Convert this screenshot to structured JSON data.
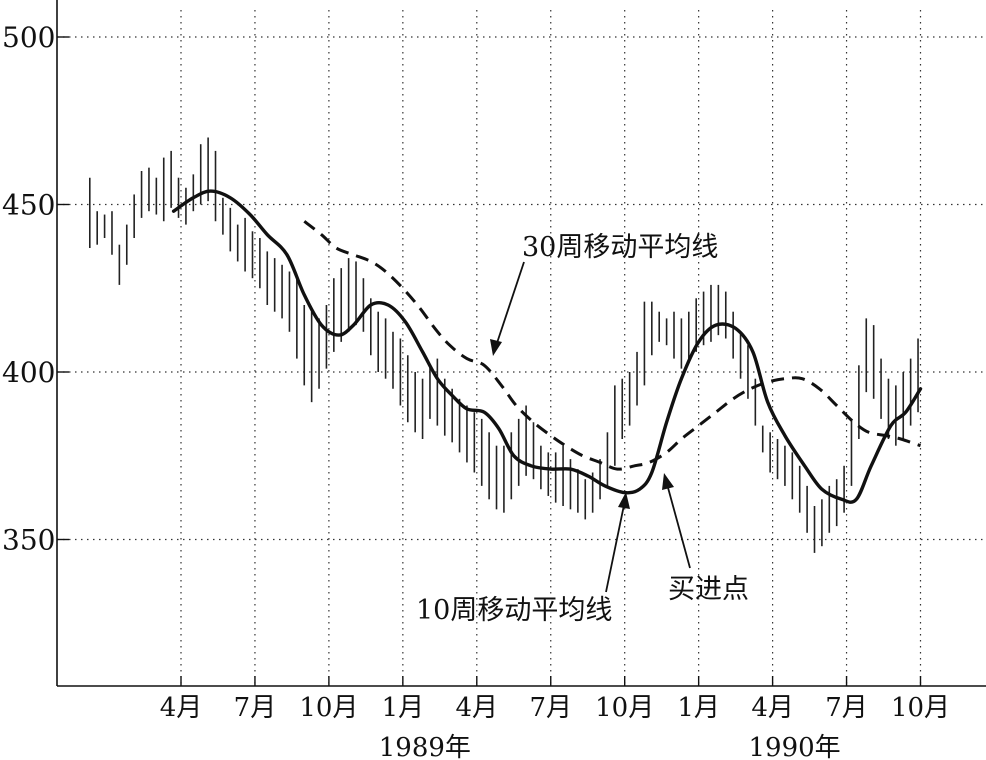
{
  "chart_data": {
    "type": "line",
    "ylim": [
      305,
      510
    ],
    "yticks": [
      350,
      400,
      450,
      500
    ],
    "xticks": [
      {
        "label": "4月",
        "t": 3
      },
      {
        "label": "7月",
        "t": 6
      },
      {
        "label": "10月",
        "t": 9
      },
      {
        "label": "1月",
        "t": 12
      },
      {
        "label": "4月",
        "t": 15
      },
      {
        "label": "7月",
        "t": 18
      },
      {
        "label": "10月",
        "t": 21
      },
      {
        "label": "1月",
        "t": 24
      },
      {
        "label": "4月",
        "t": 27
      },
      {
        "label": "7月",
        "t": 30
      },
      {
        "label": "10月",
        "t": 33
      }
    ],
    "year_labels": [
      {
        "label": "1989年",
        "t": 12
      },
      {
        "label": "1990年",
        "t": 27
      }
    ],
    "xlim": [
      -1,
      33.6
    ],
    "series": [
      {
        "name": "10周移动平均线",
        "style": "solid",
        "points": [
          [
            2.7,
            448
          ],
          [
            3.5,
            452
          ],
          [
            4.2,
            454
          ],
          [
            5.0,
            452
          ],
          [
            5.8,
            447
          ],
          [
            6.5,
            441
          ],
          [
            7.3,
            435
          ],
          [
            8.0,
            423
          ],
          [
            8.7,
            414
          ],
          [
            9.4,
            411
          ],
          [
            10.0,
            414
          ],
          [
            10.7,
            420
          ],
          [
            11.4,
            420
          ],
          [
            12.1,
            415
          ],
          [
            12.8,
            406
          ],
          [
            13.4,
            398
          ],
          [
            14.0,
            393
          ],
          [
            14.6,
            389
          ],
          [
            15.3,
            388
          ],
          [
            15.9,
            383
          ],
          [
            16.5,
            375
          ],
          [
            17.2,
            372
          ],
          [
            18.0,
            371
          ],
          [
            18.8,
            371
          ],
          [
            19.5,
            369
          ],
          [
            20.2,
            366
          ],
          [
            21.0,
            364
          ],
          [
            21.6,
            365
          ],
          [
            22.1,
            370
          ],
          [
            22.7,
            385
          ],
          [
            23.3,
            398
          ],
          [
            24.0,
            409
          ],
          [
            24.7,
            414
          ],
          [
            25.5,
            413
          ],
          [
            26.2,
            406
          ],
          [
            26.8,
            391
          ],
          [
            27.5,
            381
          ],
          [
            28.3,
            372
          ],
          [
            29.0,
            365
          ],
          [
            29.8,
            362
          ],
          [
            30.4,
            362
          ],
          [
            31.0,
            372
          ],
          [
            31.8,
            384
          ],
          [
            32.4,
            388
          ],
          [
            33.0,
            395
          ]
        ]
      },
      {
        "name": "30周移动平均线",
        "style": "dashed",
        "points": [
          [
            8.0,
            445
          ],
          [
            8.7,
            441
          ],
          [
            9.3,
            437
          ],
          [
            10.0,
            435
          ],
          [
            10.7,
            433
          ],
          [
            11.3,
            430
          ],
          [
            12.0,
            425
          ],
          [
            12.7,
            419
          ],
          [
            13.3,
            413
          ],
          [
            13.9,
            408
          ],
          [
            14.6,
            404
          ],
          [
            15.3,
            402
          ],
          [
            16.0,
            396
          ],
          [
            16.6,
            390
          ],
          [
            17.3,
            385
          ],
          [
            18.0,
            381
          ],
          [
            18.6,
            378
          ],
          [
            19.3,
            375
          ],
          [
            20.0,
            373
          ],
          [
            20.7,
            371
          ],
          [
            21.4,
            372
          ],
          [
            22.0,
            373
          ],
          [
            22.7,
            376
          ],
          [
            23.3,
            380
          ],
          [
            24.0,
            384
          ],
          [
            24.7,
            388
          ],
          [
            25.4,
            392
          ],
          [
            26.1,
            395
          ],
          [
            26.8,
            397
          ],
          [
            27.5,
            398
          ],
          [
            28.2,
            398
          ],
          [
            28.9,
            395
          ],
          [
            29.6,
            390
          ],
          [
            30.3,
            385
          ],
          [
            30.9,
            382
          ],
          [
            31.6,
            381
          ],
          [
            32.2,
            380
          ],
          [
            33.0,
            378
          ]
        ]
      }
    ],
    "bars": [
      [
        -0.7,
        437,
        458
      ],
      [
        -0.4,
        438,
        448
      ],
      [
        -0.1,
        440,
        447
      ],
      [
        0.2,
        435,
        448
      ],
      [
        0.5,
        426,
        438
      ],
      [
        0.8,
        432,
        444
      ],
      [
        1.1,
        440,
        453
      ],
      [
        1.4,
        446,
        460
      ],
      [
        1.7,
        448,
        461
      ],
      [
        2.0,
        447,
        458
      ],
      [
        2.3,
        445,
        464
      ],
      [
        2.6,
        449,
        466
      ],
      [
        2.9,
        446,
        458
      ],
      [
        3.2,
        444,
        455
      ],
      [
        3.5,
        448,
        459
      ],
      [
        3.8,
        450,
        468
      ],
      [
        4.1,
        451,
        470
      ],
      [
        4.4,
        445,
        466
      ],
      [
        4.7,
        441,
        452
      ],
      [
        5.0,
        436,
        449
      ],
      [
        5.3,
        433,
        444
      ],
      [
        5.6,
        430,
        446
      ],
      [
        5.9,
        428,
        442
      ],
      [
        6.2,
        425,
        440
      ],
      [
        6.5,
        420,
        436
      ],
      [
        6.8,
        418,
        434
      ],
      [
        7.1,
        416,
        432
      ],
      [
        7.4,
        412,
        430
      ],
      [
        7.7,
        404,
        428
      ],
      [
        8.0,
        396,
        420
      ],
      [
        8.3,
        391,
        418
      ],
      [
        8.6,
        395,
        416
      ],
      [
        8.9,
        401,
        420
      ],
      [
        9.2,
        406,
        428
      ],
      [
        9.5,
        409,
        431
      ],
      [
        9.8,
        412,
        434
      ],
      [
        10.1,
        414,
        433
      ],
      [
        10.4,
        412,
        428
      ],
      [
        10.7,
        405,
        422
      ],
      [
        11.0,
        400,
        418
      ],
      [
        11.3,
        398,
        416
      ],
      [
        11.6,
        395,
        412
      ],
      [
        11.9,
        390,
        410
      ],
      [
        12.2,
        385,
        405
      ],
      [
        12.5,
        382,
        400
      ],
      [
        12.8,
        380,
        398
      ],
      [
        13.1,
        386,
        402
      ],
      [
        13.4,
        384,
        404
      ],
      [
        13.7,
        381,
        398
      ],
      [
        14.0,
        379,
        395
      ],
      [
        14.3,
        376,
        392
      ],
      [
        14.6,
        373,
        390
      ],
      [
        14.9,
        370,
        388
      ],
      [
        15.2,
        366,
        386
      ],
      [
        15.5,
        362,
        382
      ],
      [
        15.8,
        359,
        378
      ],
      [
        16.1,
        358,
        378
      ],
      [
        16.4,
        362,
        382
      ],
      [
        16.7,
        366,
        386
      ],
      [
        17.0,
        369,
        390
      ],
      [
        17.3,
        368,
        385
      ],
      [
        17.6,
        365,
        378
      ],
      [
        17.9,
        363,
        376
      ],
      [
        18.2,
        361,
        376
      ],
      [
        18.5,
        360,
        378
      ],
      [
        18.8,
        359,
        374
      ],
      [
        19.1,
        358,
        371
      ],
      [
        19.4,
        356,
        368
      ],
      [
        19.7,
        358,
        370
      ],
      [
        20.0,
        362,
        374
      ],
      [
        20.3,
        366,
        382
      ],
      [
        20.6,
        372,
        396
      ],
      [
        20.9,
        380,
        398
      ],
      [
        21.2,
        384,
        400
      ],
      [
        21.5,
        390,
        406
      ],
      [
        21.8,
        396,
        421
      ],
      [
        22.1,
        405,
        421
      ],
      [
        22.4,
        409,
        418
      ],
      [
        22.7,
        408,
        416
      ],
      [
        23.0,
        404,
        418
      ],
      [
        23.3,
        401,
        416
      ],
      [
        23.6,
        403,
        418
      ],
      [
        23.9,
        406,
        422
      ],
      [
        24.2,
        408,
        424
      ],
      [
        24.5,
        409,
        426
      ],
      [
        24.8,
        411,
        426
      ],
      [
        25.1,
        410,
        424
      ],
      [
        25.4,
        404,
        418
      ],
      [
        25.7,
        398,
        412
      ],
      [
        26.0,
        392,
        408
      ],
      [
        26.3,
        384,
        398
      ],
      [
        26.6,
        376,
        384
      ],
      [
        26.9,
        370,
        382
      ],
      [
        27.2,
        368,
        380
      ],
      [
        27.5,
        366,
        378
      ],
      [
        27.8,
        362,
        376
      ],
      [
        28.1,
        358,
        372
      ],
      [
        28.4,
        352,
        366
      ],
      [
        28.7,
        346,
        360
      ],
      [
        29.0,
        348,
        362
      ],
      [
        29.3,
        352,
        366
      ],
      [
        29.6,
        354,
        368
      ],
      [
        29.9,
        358,
        372
      ],
      [
        30.2,
        366,
        386
      ],
      [
        30.5,
        380,
        402
      ],
      [
        30.8,
        394,
        416
      ],
      [
        31.1,
        392,
        414
      ],
      [
        31.4,
        386,
        404
      ],
      [
        31.7,
        380,
        398
      ],
      [
        32.0,
        378,
        396
      ],
      [
        32.3,
        380,
        400
      ],
      [
        32.6,
        384,
        404
      ],
      [
        32.9,
        388,
        410
      ]
    ],
    "annotations": [
      {
        "text": "30周移动平均线"
      },
      {
        "text": "10周移动平均线"
      },
      {
        "text": "买进点"
      }
    ]
  }
}
